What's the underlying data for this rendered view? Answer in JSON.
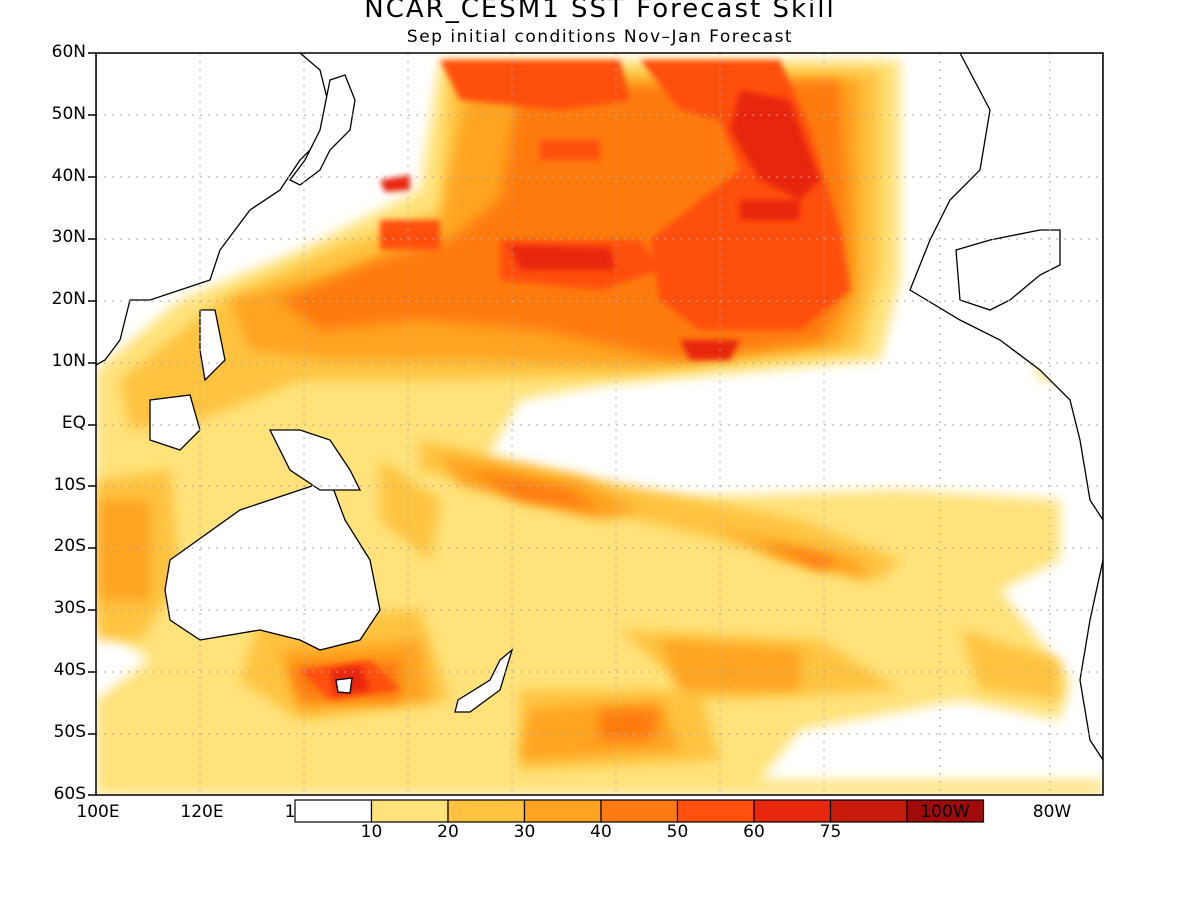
{
  "title": "NCAR_CESM1  SST Forecast Skill",
  "subtitle": "Sep initial conditions  Nov–Jan Forecast",
  "lat_labels": [
    "60N",
    "50N",
    "40N",
    "30N",
    "20N",
    "10N",
    "EQ",
    "10S",
    "20S",
    "30S",
    "40S",
    "50S",
    "60S"
  ],
  "lon_labels": [
    "100E",
    "120E",
    "1",
    "100W",
    "80W"
  ],
  "colorbar": {
    "labels": [
      "10",
      "20",
      "30",
      "40",
      "50",
      "60",
      "75"
    ],
    "colors": [
      "#ffffff",
      "#ffe27a",
      "#ffc340",
      "#ffa320",
      "#ff7a10",
      "#ff5010",
      "#e8280e",
      "#c81a0a",
      "#a00a08"
    ]
  },
  "land_color": "#ffffff",
  "coastline_color": "#000000",
  "grid": "dotted"
}
